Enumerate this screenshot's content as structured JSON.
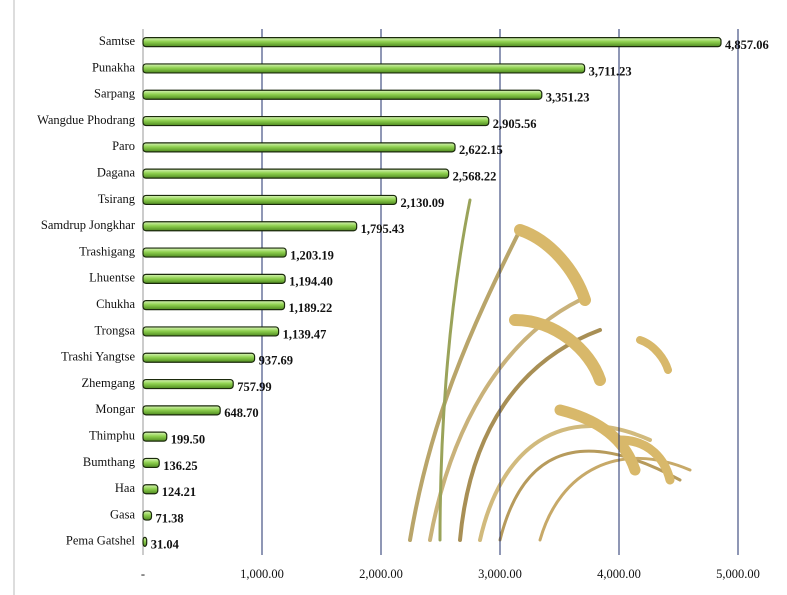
{
  "chart_data": {
    "type": "bar",
    "orientation": "horizontal",
    "categories": [
      "Samtse",
      "Punakha",
      "Sarpang",
      "Wangdue Phodrang",
      "Paro",
      "Dagana",
      "Tsirang",
      "Samdrup Jongkhar",
      "Trashigang",
      "Lhuentse",
      "Chukha",
      "Trongsa",
      "Trashi Yangtse",
      "Zhemgang",
      "Mongar",
      "Thimphu",
      "Bumthang",
      "Haa",
      "Gasa",
      "Pema Gatshel"
    ],
    "values": [
      4857.06,
      3711.23,
      3351.23,
      2905.56,
      2622.15,
      2568.22,
      2130.09,
      1795.43,
      1203.19,
      1194.4,
      1189.22,
      1139.47,
      937.69,
      757.99,
      648.7,
      199.5,
      136.25,
      124.21,
      71.38,
      31.04
    ],
    "value_labels": [
      "4,857.06",
      "3,711.23",
      "3,351.23",
      "2,905.56",
      "2,622.15",
      "2,568.22",
      "2,130.09",
      "1,795.43",
      "1,203.19",
      "1,194.40",
      "1,189.22",
      "1,139.47",
      "937.69",
      "757.99",
      "648.70",
      "199.50",
      "136.25",
      "124.21",
      "71.38",
      "31.04"
    ],
    "color": "#8fd14f",
    "xlim": [
      0,
      5000
    ],
    "xticks": [
      {
        "value": 0,
        "label": "-"
      },
      {
        "value": 1000,
        "label": "1,000.00"
      },
      {
        "value": 2000,
        "label": "2,000.00"
      },
      {
        "value": 3000,
        "label": "3,000.00"
      },
      {
        "value": 4000,
        "label": "4,000.00"
      },
      {
        "value": 5000,
        "label": "5,000.00"
      }
    ],
    "grid": true
  }
}
